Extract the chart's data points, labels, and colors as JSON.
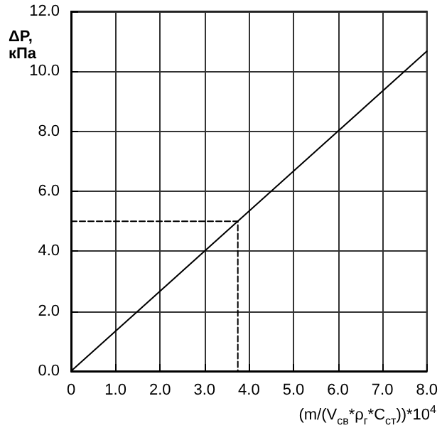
{
  "chart_data": {
    "type": "line",
    "xlabel": "(m/(V$_{св}$*ρ$_{г}$*C$_{ст}$))*10$^{4}$",
    "ylabel": "ΔP, кПа",
    "series": [
      {
        "color": "#000000",
        "x": [
          0,
          8
        ],
        "values": [
          0,
          10.67
        ]
      },
      {
        "color": "#000000",
        "x": [
          0,
          3.75,
          3.75
        ],
        "values": [
          5,
          5,
          0
        ],
        "line_style": "dashed"
      }
    ],
    "xlim": [
      0,
      8
    ],
    "ylim": [
      0,
      12
    ],
    "xticks": [
      {
        "value": 0,
        "label": "0"
      },
      {
        "value": 1,
        "label": "1.0"
      },
      {
        "value": 2,
        "label": "2.0"
      },
      {
        "value": 3,
        "label": "3.0"
      },
      {
        "value": 4,
        "label": "4.0"
      },
      {
        "value": 5,
        "label": "5.0"
      },
      {
        "value": 6,
        "label": "6.0"
      },
      {
        "value": 7,
        "label": "7.0"
      },
      {
        "value": 8,
        "label": "8.0"
      }
    ],
    "yticks": [
      {
        "value": 0,
        "label": "0.0"
      },
      {
        "value": 2,
        "label": "2.0"
      },
      {
        "value": 4,
        "label": "4.0"
      },
      {
        "value": 6,
        "label": "6.0"
      },
      {
        "value": 8,
        "label": "8.0"
      },
      {
        "value": 10,
        "label": "10.0"
      },
      {
        "value": 12,
        "label": "12.0"
      }
    ],
    "grid": true,
    "marker": "none",
    "line_style": "solid"
  }
}
